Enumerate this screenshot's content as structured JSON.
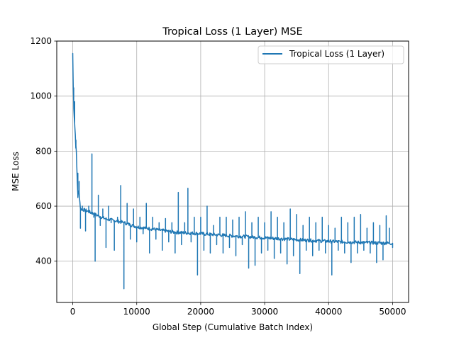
{
  "chart_data": {
    "type": "line",
    "title": "Tropical Loss (1 Layer) MSE",
    "xlabel": "Global Step (Cumulative Batch Index)",
    "ylabel": "MSE Loss",
    "xlim": [
      -2500,
      52500
    ],
    "ylim": [
      250,
      1200
    ],
    "xticks": [
      0,
      10000,
      20000,
      30000,
      40000,
      50000
    ],
    "xtick_labels": [
      "0",
      "10000",
      "20000",
      "30000",
      "40000",
      "50000"
    ],
    "yticks": [
      400,
      600,
      800,
      1000,
      1200
    ],
    "ytick_labels": [
      "400",
      "600",
      "800",
      "1000",
      "1200"
    ],
    "grid": true,
    "legend_position": "top-right",
    "color": "#1f77b4",
    "series": [
      {
        "name": "Tropical Loss (1 Layer)",
        "baseline": [
          [
            0,
            1150
          ],
          [
            100,
            1000
          ],
          [
            300,
            900
          ],
          [
            500,
            820
          ],
          [
            800,
            640
          ],
          [
            1000,
            650
          ],
          [
            1200,
            590
          ],
          [
            2000,
            585
          ],
          [
            3000,
            575
          ],
          [
            5000,
            555
          ],
          [
            8000,
            540
          ],
          [
            10000,
            525
          ],
          [
            13000,
            515
          ],
          [
            16000,
            505
          ],
          [
            20000,
            500
          ],
          [
            25000,
            492
          ],
          [
            30000,
            485
          ],
          [
            35000,
            478
          ],
          [
            40000,
            472
          ],
          [
            45000,
            468
          ],
          [
            50000,
            465
          ]
        ],
        "spikes": [
          [
            0,
            1155
          ],
          [
            150,
            1030
          ],
          [
            300,
            980
          ],
          [
            500,
            840
          ],
          [
            800,
            720
          ],
          [
            1000,
            690
          ],
          [
            1200,
            520
          ],
          [
            1500,
            600
          ],
          [
            2000,
            510
          ],
          [
            2500,
            600
          ],
          [
            3000,
            790
          ],
          [
            3300,
            560
          ],
          [
            3500,
            400
          ],
          [
            4000,
            640
          ],
          [
            4300,
            530
          ],
          [
            4700,
            590
          ],
          [
            5200,
            450
          ],
          [
            5600,
            600
          ],
          [
            6000,
            540
          ],
          [
            6500,
            440
          ],
          [
            7000,
            560
          ],
          [
            7500,
            675
          ],
          [
            8000,
            300
          ],
          [
            8500,
            610
          ],
          [
            9000,
            480
          ],
          [
            9500,
            590
          ],
          [
            10000,
            470
          ],
          [
            10500,
            560
          ],
          [
            11000,
            500
          ],
          [
            11500,
            610
          ],
          [
            12000,
            430
          ],
          [
            12500,
            560
          ],
          [
            13000,
            480
          ],
          [
            13500,
            540
          ],
          [
            14000,
            440
          ],
          [
            14500,
            555
          ],
          [
            15000,
            470
          ],
          [
            15500,
            540
          ],
          [
            16000,
            430
          ],
          [
            16500,
            650
          ],
          [
            17000,
            460
          ],
          [
            17500,
            540
          ],
          [
            18000,
            665
          ],
          [
            18500,
            470
          ],
          [
            19000,
            560
          ],
          [
            19500,
            350
          ],
          [
            20000,
            560
          ],
          [
            20500,
            440
          ],
          [
            21000,
            600
          ],
          [
            21500,
            430
          ],
          [
            22000,
            530
          ],
          [
            22500,
            460
          ],
          [
            23000,
            560
          ],
          [
            23500,
            430
          ],
          [
            24000,
            560
          ],
          [
            24500,
            450
          ],
          [
            25000,
            550
          ],
          [
            25500,
            420
          ],
          [
            26000,
            560
          ],
          [
            26500,
            460
          ],
          [
            27000,
            580
          ],
          [
            27500,
            375
          ],
          [
            28000,
            540
          ],
          [
            28500,
            385
          ],
          [
            29000,
            560
          ],
          [
            29500,
            430
          ],
          [
            30000,
            540
          ],
          [
            30500,
            440
          ],
          [
            31000,
            580
          ],
          [
            31500,
            410
          ],
          [
            32000,
            560
          ],
          [
            32500,
            430
          ],
          [
            33000,
            540
          ],
          [
            33500,
            390
          ],
          [
            34000,
            590
          ],
          [
            34500,
            420
          ],
          [
            35000,
            570
          ],
          [
            35500,
            355
          ],
          [
            36000,
            530
          ],
          [
            36500,
            440
          ],
          [
            37000,
            560
          ],
          [
            37500,
            420
          ],
          [
            38000,
            540
          ],
          [
            38500,
            440
          ],
          [
            39000,
            560
          ],
          [
            39500,
            430
          ],
          [
            40000,
            530
          ],
          [
            40500,
            350
          ],
          [
            41000,
            520
          ],
          [
            41500,
            440
          ],
          [
            42000,
            560
          ],
          [
            42500,
            430
          ],
          [
            43000,
            540
          ],
          [
            43500,
            395
          ],
          [
            44000,
            560
          ],
          [
            44500,
            430
          ],
          [
            45000,
            570
          ],
          [
            45500,
            440
          ],
          [
            46000,
            520
          ],
          [
            46500,
            430
          ],
          [
            47000,
            540
          ],
          [
            47500,
            395
          ],
          [
            48000,
            530
          ],
          [
            48500,
            405
          ],
          [
            49000,
            565
          ],
          [
            49500,
            520
          ],
          [
            50000,
            450
          ]
        ]
      }
    ]
  }
}
